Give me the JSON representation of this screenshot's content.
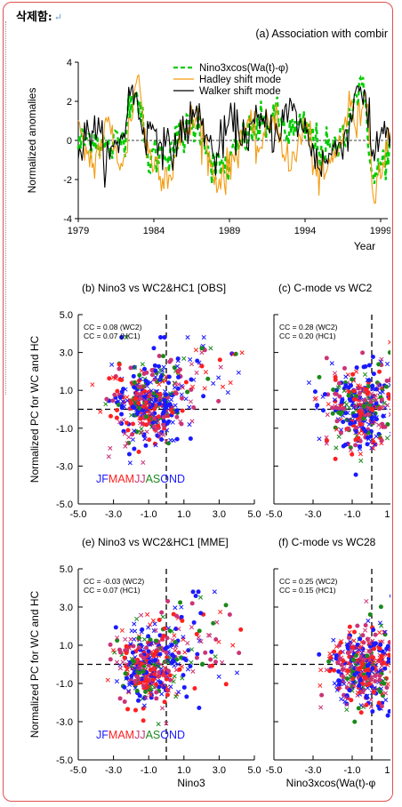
{
  "header": {
    "delete_label": "삭제함:",
    "return_symbol": "↵"
  },
  "colors": {
    "frame_border": "#e05050",
    "green": "#00cc00",
    "orange": "#f39c12",
    "black": "#000000",
    "blue": "#1a1aff",
    "red": "#ff2020",
    "darkgreen": "#1a8a1a",
    "magenta": "#cc3377"
  },
  "chart_data": [
    {
      "type": "line",
      "title": "(a) Association with combir",
      "xlabel": "Year",
      "ylabel": "Normalized anomalies",
      "xlim": [
        1979,
        2000
      ],
      "ylim": [
        -4,
        4
      ],
      "x_ticks": [
        "1979",
        "1984",
        "1989",
        "1994",
        "1999"
      ],
      "y_ticks": [
        "4",
        "2",
        "0",
        "-2",
        "-4"
      ],
      "legend_position": "top-center",
      "series": [
        {
          "name": "Nino3xcos(Wa(t)-φ)",
          "style": "dashed",
          "color": "#00cc00",
          "x": [
            1979,
            1980,
            1981,
            1982,
            1982.5,
            1983,
            1983.5,
            1984,
            1985,
            1986,
            1987,
            1988,
            1989,
            1990,
            1991,
            1992,
            1993,
            1994,
            1995,
            1996,
            1997,
            1997.5,
            1998,
            1998.5,
            1999,
            2000
          ],
          "y": [
            -0.3,
            0.3,
            -0.5,
            0.2,
            2.5,
            2.2,
            -1.0,
            -0.8,
            -0.5,
            0.3,
            1.0,
            -1.5,
            -1.2,
            0.2,
            0.6,
            1.2,
            0.4,
            0.6,
            -0.4,
            -0.6,
            1.5,
            2.6,
            2.0,
            -2.2,
            -1.3,
            0.3
          ]
        },
        {
          "name": "Hadley shift mode",
          "style": "solid",
          "color": "#f39c12",
          "x": [
            1979,
            1980,
            1981,
            1982,
            1982.5,
            1983,
            1983.5,
            1984,
            1985,
            1986,
            1987,
            1988,
            1989,
            1990,
            1991,
            1992,
            1993,
            1994,
            1995,
            1996,
            1997,
            1997.5,
            1998,
            1998.5,
            1999,
            2000
          ],
          "y": [
            0.2,
            -1.2,
            0.8,
            -1.5,
            1.5,
            3.5,
            -0.5,
            -1.0,
            -1.8,
            0.5,
            1.2,
            -2.0,
            -1.5,
            0.8,
            -0.4,
            1.5,
            -1.6,
            0.9,
            -2.2,
            -0.8,
            1.8,
            0.6,
            3.1,
            -2.5,
            -1.5,
            1.0
          ]
        },
        {
          "name": "Walker shift mode",
          "style": "solid",
          "color": "#000000",
          "x": [
            1979,
            1980,
            1981,
            1982,
            1982.5,
            1983,
            1983.5,
            1984,
            1985,
            1986,
            1987,
            1988,
            1989,
            1990,
            1991,
            1992,
            1993,
            1994,
            1995,
            1996,
            1997,
            1997.5,
            1998,
            1998.5,
            1999,
            2000
          ],
          "y": [
            -0.6,
            0.8,
            -1.0,
            0.4,
            2.8,
            1.5,
            0.2,
            0.8,
            -0.7,
            0.6,
            1.4,
            -1.0,
            0.9,
            0.3,
            0.9,
            0.4,
            1.6,
            0.5,
            -1.3,
            -0.5,
            0.8,
            3.3,
            1.8,
            -1.0,
            0.6,
            0.4
          ]
        }
      ]
    },
    {
      "type": "scatter",
      "title": "(b) Nino3 vs WC2&HC1 [OBS]",
      "ylabel": "Normalized PC for WC and HC",
      "xlim": [
        -5,
        5
      ],
      "ylim": [
        -5,
        5
      ],
      "x_ticks": [
        "-5.0",
        "-3.0",
        "-1.0",
        "1.0",
        "3.0",
        "5.0"
      ],
      "y_ticks": [
        "5.0",
        "3.0",
        "1.0",
        "-1.0",
        "-3.0",
        "-5.0"
      ],
      "annotations": [
        "CC = 0.08 (WC2)",
        "CC = 0.07 (HC1)"
      ],
      "month_legend": "JFMAMJJASOND",
      "cross": {
        "x": 0,
        "y": 0
      },
      "cloud": {
        "x_mean": -1.0,
        "x_sd": 1.0,
        "y_mean": 0.3,
        "y_sd": 1.1
      }
    },
    {
      "type": "scatter",
      "title": "(c) C-mode vs WC2",
      "xlim": [
        -5,
        1
      ],
      "ylim": [
        -5,
        5
      ],
      "x_ticks": [
        "-5.0",
        "-3.0",
        "-1.0",
        "1.0"
      ],
      "annotations": [
        "CC = 0.28 (WC2)",
        "CC = 0.20 (HC1)"
      ],
      "cross": {
        "x": 0,
        "y": 0
      },
      "cloud": {
        "x_mean": -0.5,
        "x_sd": 0.9,
        "y_mean": 0.0,
        "y_sd": 1.1
      }
    },
    {
      "type": "scatter",
      "title": "(e) Nino3 vs WC2&HC1 [MME]",
      "xlabel": "Nino3",
      "ylabel": "Normalized PC for WC and HC",
      "xlim": [
        -5,
        5
      ],
      "ylim": [
        -5,
        5
      ],
      "x_ticks": [
        "-5.0",
        "-3.0",
        "-1.0",
        "1.0",
        "3.0",
        "5.0"
      ],
      "y_ticks": [
        "5.0",
        "3.0",
        "1.0",
        "-1.0",
        "-3.0",
        "-5.0"
      ],
      "annotations": [
        "CC = -0.03 (WC2)",
        "CC = 0.07 (HC1)"
      ],
      "month_legend": "JFMAMJJASOND",
      "cross": {
        "x": 0,
        "y": 0
      },
      "cloud": {
        "x_mean": -1.0,
        "x_sd": 0.9,
        "y_mean": 0.0,
        "y_sd": 1.0
      }
    },
    {
      "type": "scatter",
      "title": "(f) C-mode vs WC28",
      "xlabel": "Nino3xcos(Wa(t)-φ",
      "xlim": [
        -5,
        1
      ],
      "ylim": [
        -5,
        5
      ],
      "x_ticks": [
        "-5.0",
        "-3.0",
        "-1.0",
        "1.0"
      ],
      "annotations": [
        "CC = 0.25 (WC2)",
        "CC = 0.15 (HC1)"
      ],
      "cross": {
        "x": 0,
        "y": 0
      },
      "cloud": {
        "x_mean": -0.5,
        "x_sd": 0.9,
        "y_mean": -0.2,
        "y_sd": 1.0
      }
    }
  ]
}
